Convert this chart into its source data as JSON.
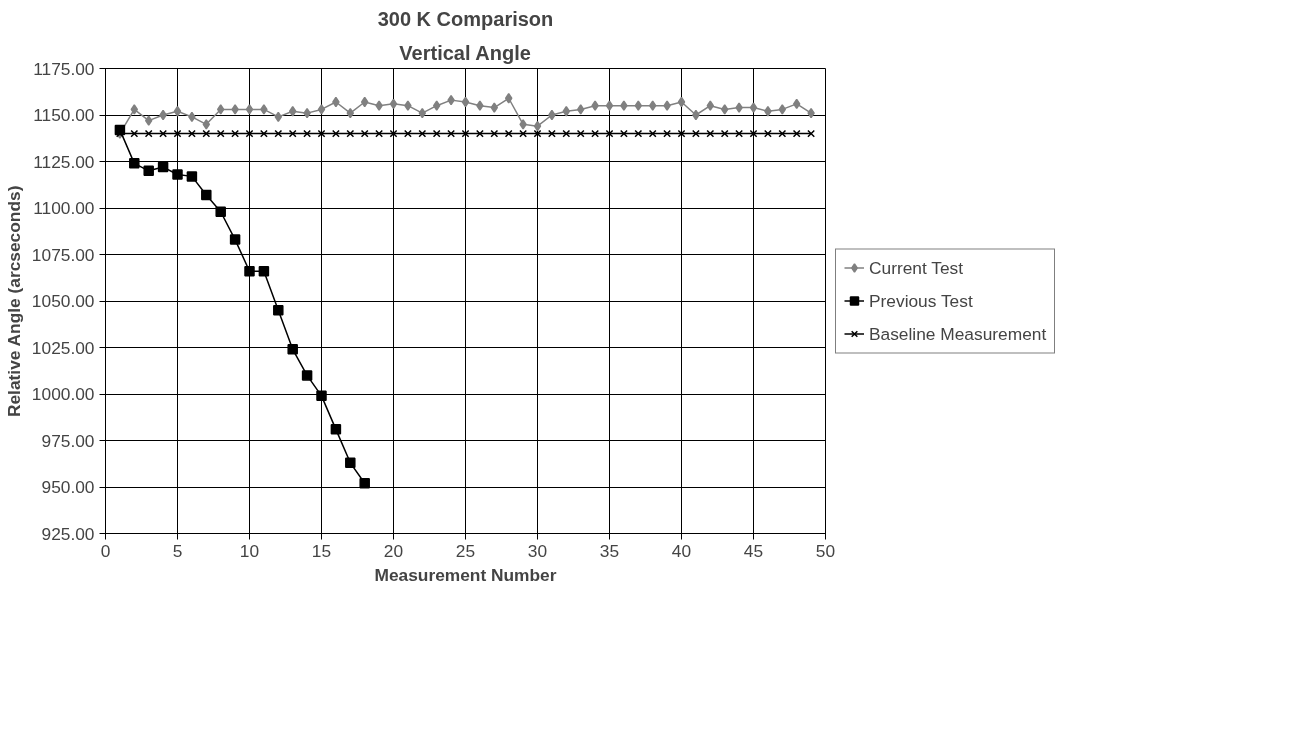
{
  "chart_data": {
    "type": "line",
    "title": "300 K Comparison",
    "subtitle": "Vertical Angle",
    "xlabel": "Measurement Number",
    "ylabel": "Relative Angle (arcseconds)",
    "xlim": [
      0,
      50
    ],
    "xticks": [
      0,
      5,
      10,
      15,
      20,
      25,
      30,
      35,
      40,
      45,
      50
    ],
    "ylim": [
      925,
      1175
    ],
    "yticks": [
      {
        "value": 925,
        "label": "925.00"
      },
      {
        "value": 950,
        "label": "950.00"
      },
      {
        "value": 975,
        "label": "975.00"
      },
      {
        "value": 1000,
        "label": "1000.00"
      },
      {
        "value": 1025,
        "label": "1025.00"
      },
      {
        "value": 1050,
        "label": "1050.00"
      },
      {
        "value": 1075,
        "label": "1075.00"
      },
      {
        "value": 1100,
        "label": "1100.00"
      },
      {
        "value": 1125,
        "label": "1125.00"
      },
      {
        "value": 1150,
        "label": "1150.00"
      },
      {
        "value": 1175,
        "label": "1175.00"
      }
    ],
    "grid": true,
    "legend": "right",
    "series": [
      {
        "name": "Current Test",
        "color": "#808080",
        "marker": "diamond",
        "x": [
          1,
          2,
          3,
          4,
          5,
          6,
          7,
          8,
          9,
          10,
          11,
          12,
          13,
          14,
          15,
          16,
          17,
          18,
          19,
          20,
          21,
          22,
          23,
          24,
          25,
          26,
          27,
          28,
          29,
          30,
          31,
          32,
          33,
          34,
          35,
          36,
          37,
          38,
          39,
          40,
          41,
          42,
          43,
          44,
          45,
          46,
          47,
          48,
          49
        ],
        "values": [
          1140,
          1153,
          1147,
          1150,
          1152,
          1149,
          1145,
          1153,
          1153,
          1153,
          1153,
          1149,
          1152,
          1151,
          1153,
          1157,
          1151,
          1157,
          1155,
          1156,
          1155,
          1151,
          1155,
          1158,
          1157,
          1155,
          1154,
          1159,
          1145,
          1144,
          1150,
          1152,
          1153,
          1155,
          1155,
          1155,
          1155,
          1155,
          1155,
          1157,
          1150,
          1155,
          1153,
          1154,
          1154,
          1152,
          1153,
          1156,
          1151
        ]
      },
      {
        "name": "Previous Test",
        "color": "#000000",
        "marker": "square",
        "x": [
          1,
          2,
          3,
          4,
          5,
          6,
          7,
          8,
          9,
          10,
          11,
          12,
          13,
          14,
          15,
          16,
          17,
          18
        ],
        "values": [
          1142,
          1124,
          1120,
          1122,
          1118,
          1117,
          1107,
          1098,
          1083,
          1066,
          1066,
          1045,
          1024,
          1010,
          999,
          981,
          963,
          952
        ]
      },
      {
        "name": "Baseline Measurement",
        "color": "#000000",
        "marker": "cross",
        "x": [
          1,
          2,
          3,
          4,
          5,
          6,
          7,
          8,
          9,
          10,
          11,
          12,
          13,
          14,
          15,
          16,
          17,
          18,
          19,
          20,
          21,
          22,
          23,
          24,
          25,
          26,
          27,
          28,
          29,
          30,
          31,
          32,
          33,
          34,
          35,
          36,
          37,
          38,
          39,
          40,
          41,
          42,
          43,
          44,
          45,
          46,
          47,
          48,
          49
        ],
        "values": [
          1140,
          1140,
          1140,
          1140,
          1140,
          1140,
          1140,
          1140,
          1140,
          1140,
          1140,
          1140,
          1140,
          1140,
          1140,
          1140,
          1140,
          1140,
          1140,
          1140,
          1140,
          1140,
          1140,
          1140,
          1140,
          1140,
          1140,
          1140,
          1140,
          1140,
          1140,
          1140,
          1140,
          1140,
          1140,
          1140,
          1140,
          1140,
          1140,
          1140,
          1140,
          1140,
          1140,
          1140,
          1140,
          1140,
          1140,
          1140,
          1140
        ]
      }
    ]
  }
}
